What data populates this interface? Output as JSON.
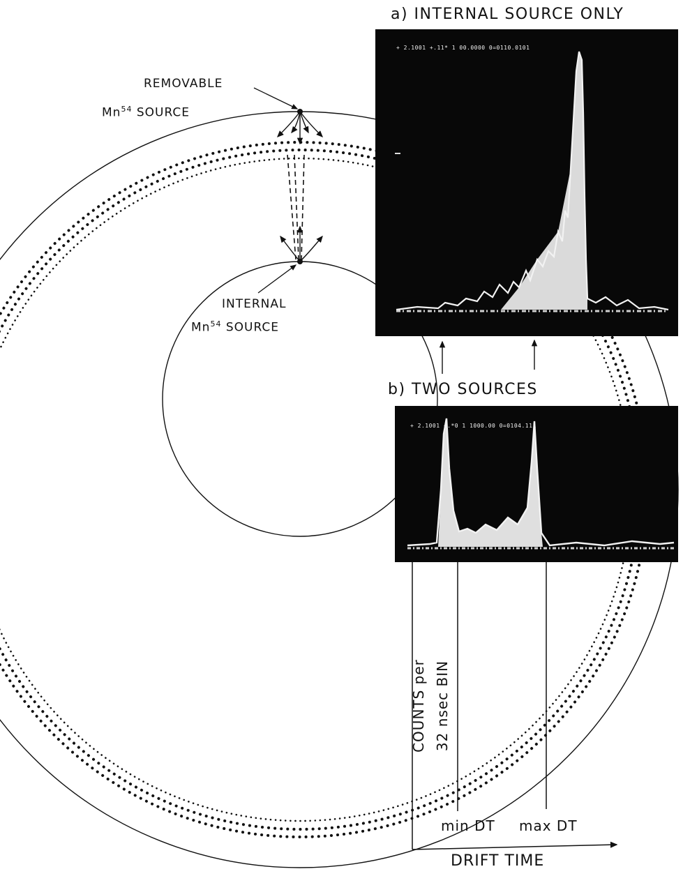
{
  "panel_a": {
    "title": "a) INTERNAL SOURCE ONLY",
    "readout": "+ 2.1001 +.11* 1 00.0000 0=0110.0101"
  },
  "panel_b": {
    "title": "b) TWO SOURCES",
    "readout": "+ 2.1001 +.*0 1 1000.00 0=0104.111"
  },
  "chamber": {
    "removable_source": {
      "line1": "REMOVABLE",
      "line2_prefix": "Mn",
      "isotope": "54",
      "line2_suffix": " SOURCE"
    },
    "internal_source": {
      "line1": "INTERNAL",
      "line2_prefix": "Mn",
      "isotope": "54",
      "line2_suffix": " SOURCE"
    }
  },
  "axes": {
    "ylabel_line1": "COUNTS per",
    "ylabel_line2": "32 nsec BIN",
    "xlabel": "DRIFT TIME",
    "marker_min": "min DT",
    "marker_max": "max DT"
  },
  "colors": {
    "ink": "#111111",
    "scope_bg": "#080808",
    "trace": "#f2f2f2"
  }
}
